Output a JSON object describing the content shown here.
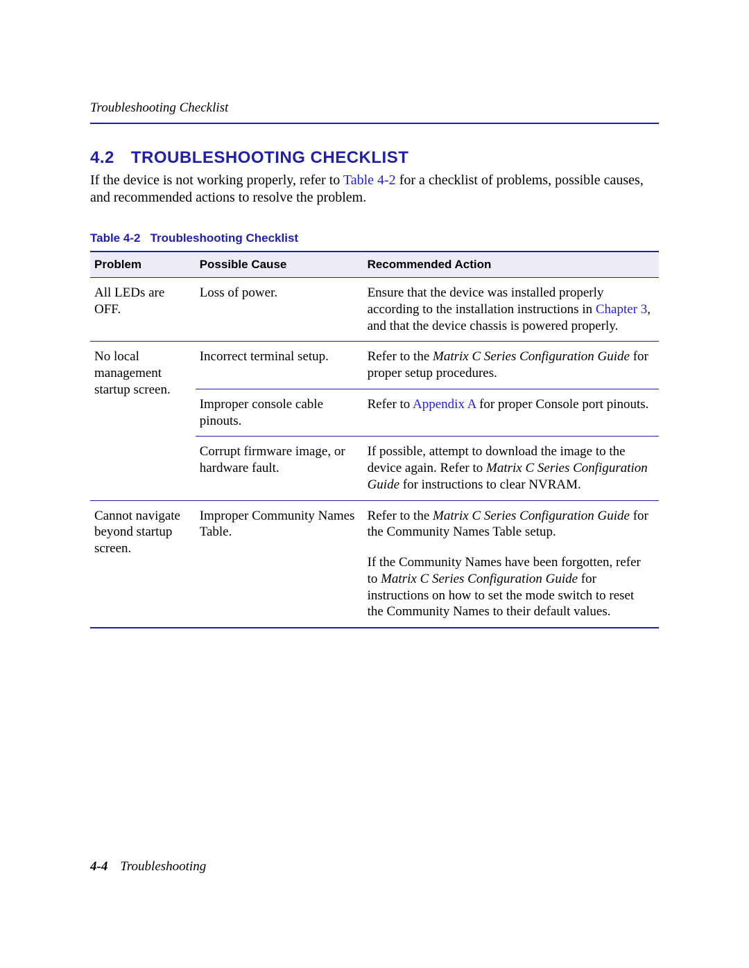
{
  "colors": {
    "brand_blue": "#2020aa",
    "link_blue": "#2020e0",
    "header_fill": "#ecebf7",
    "page_bg": "#ffffff",
    "text": "#000000"
  },
  "typography": {
    "body_font": "Times New Roman",
    "heading_font": "Arial",
    "body_fontsize_pt": 15,
    "heading_fontsize_pt": 18,
    "table_header_fontsize_pt": 13
  },
  "running_header": "Troubleshooting Checklist",
  "section": {
    "number": "4.2",
    "title": "TROUBLESHOOTING CHECKLIST"
  },
  "intro": {
    "pre": "If the device is not working properly, refer to ",
    "xref": "Table 4-2",
    "post": " for a checklist of problems, possible causes, and recommended actions to resolve the problem."
  },
  "table": {
    "caption_label": "Table 4-2",
    "caption_title": "Troubleshooting Checklist",
    "columns": [
      "Problem",
      "Possible Cause",
      "Recommended Action"
    ],
    "col_widths_pct": [
      18.5,
      29.5,
      52
    ],
    "rows": [
      {
        "problem": "All LEDs are OFF.",
        "cause": "Loss of power.",
        "action_pre": "Ensure that the device was installed properly according to the installation instructions in ",
        "action_xref": "Chapter 3",
        "action_post": ", and that the device chassis is powered properly."
      },
      {
        "problem": "No local management startup screen.",
        "cause": "Incorrect terminal setup.",
        "action_pre": "Refer to the ",
        "action_italic": "Matrix C Series Configuration Guide",
        "action_post": " for proper setup procedures."
      },
      {
        "cause": "Improper console cable pinouts.",
        "action_pre": "Refer to ",
        "action_xref": "Appendix A",
        "action_post": " for proper Console port pinouts."
      },
      {
        "cause": "Corrupt firmware image, or hardware fault.",
        "action_pre": "If possible, attempt to download the image to the device again. Refer to ",
        "action_italic": "Matrix C Series Configuration Guide",
        "action_post": " for instructions to clear NVRAM."
      },
      {
        "problem": "Cannot navigate beyond startup screen.",
        "cause": "Improper Community Names Table.",
        "action_pre": "Refer to the ",
        "action_italic": "Matrix C Series Configuration Guide",
        "action_post": " for the Community Names Table setup."
      },
      {
        "action_pre": "If the Community Names have been forgotten, refer to ",
        "action_italic": "Matrix C Series Configuration Guide",
        "action_post": " for instructions on how to set the mode switch to reset the Community Names to their default values."
      }
    ]
  },
  "footer": {
    "page_num": "4-4",
    "chapter": "Troubleshooting"
  }
}
